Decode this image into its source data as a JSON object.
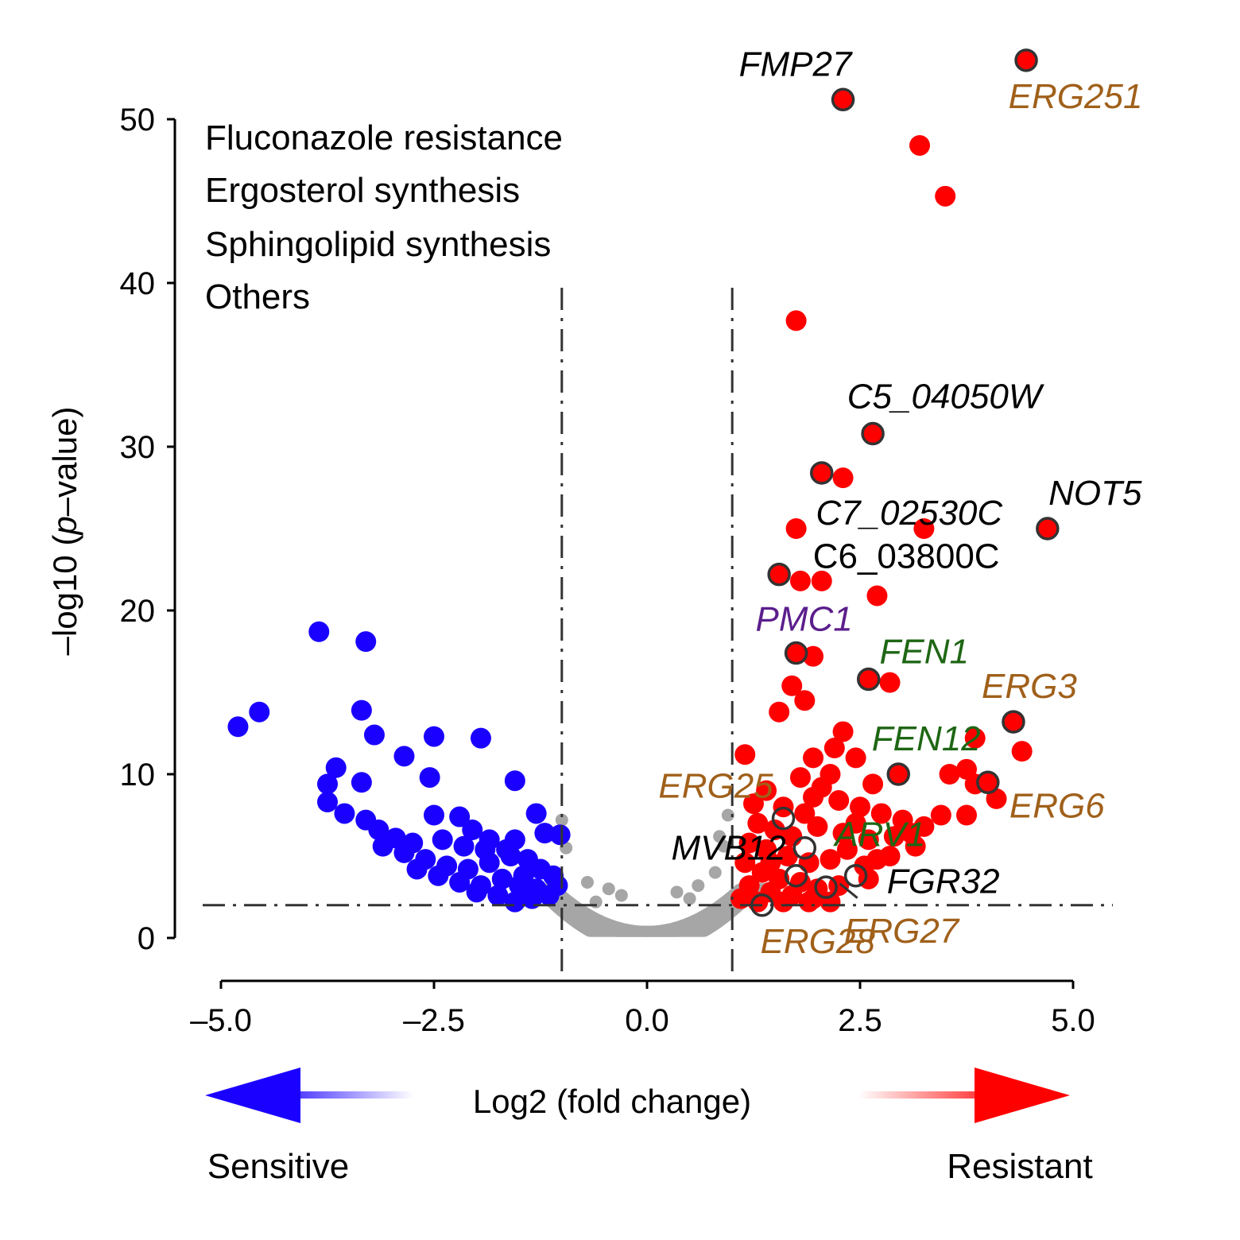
{
  "chart_data": {
    "type": "scatter",
    "title": "",
    "xlabel": "Log2 (fold change)",
    "ylabel_parts": [
      "–log10 (",
      "p",
      "–value)"
    ],
    "xlim": [
      -5.0,
      5.0
    ],
    "ylim": [
      0,
      50
    ],
    "x_ticks": [
      "–5.0",
      "–2.5",
      "0.0",
      "2.5",
      "5.0"
    ],
    "y_ticks": [
      "0",
      "10",
      "20",
      "30",
      "40",
      "50"
    ],
    "thresholds": {
      "log2fc": [
        -1,
        1
      ],
      "neg_log10_p": 2
    },
    "direction_labels": {
      "left": "Sensitive",
      "right": "Resistant"
    },
    "colors": {
      "sensitive": "#1a00ff",
      "resistant": "#ff0000",
      "not_significant": "#a6a6a6",
      "fluconazole_resistance": "#5b1e8c",
      "ergosterol_synthesis": "#a0601a",
      "sphingolipid_synthesis": "#1e6614",
      "others": "#000000"
    },
    "legend": [
      {
        "label": "Fluconazole resistance",
        "color": "#5b1e8c"
      },
      {
        "label": "Ergosterol synthesis",
        "color": "#a0601a"
      },
      {
        "label": "Sphingolipid synthesis",
        "color": "#1e6614"
      },
      {
        "label": "Others",
        "color": "#000000"
      }
    ],
    "highlighted_genes": [
      {
        "name": "FMP27",
        "x": 2.3,
        "y": 51.2,
        "category": "others",
        "italic": true
      },
      {
        "name": "ERG251",
        "x": 4.45,
        "y": 53.6,
        "category": "ergosterol_synthesis",
        "italic": true
      },
      {
        "name": "C5_04050W",
        "x": 2.65,
        "y": 30.8,
        "category": "others",
        "italic": true
      },
      {
        "name": "C7_02530C",
        "x": 2.05,
        "y": 28.4,
        "category": "others",
        "italic": true
      },
      {
        "name": "NOT5",
        "x": 4.7,
        "y": 25.0,
        "category": "others",
        "italic": true
      },
      {
        "name": "C6_03800C",
        "x": 1.55,
        "y": 22.2,
        "category": "others",
        "italic": false
      },
      {
        "name": "PMC1",
        "x": 1.75,
        "y": 17.4,
        "category": "fluconazole_resistance",
        "italic": true
      },
      {
        "name": "FEN1",
        "x": 2.6,
        "y": 15.8,
        "category": "sphingolipid_synthesis",
        "italic": true
      },
      {
        "name": "ERG3",
        "x": 4.3,
        "y": 13.2,
        "category": "ergosterol_synthesis",
        "italic": true
      },
      {
        "name": "FEN12",
        "x": 2.95,
        "y": 10.0,
        "category": "sphingolipid_synthesis",
        "italic": true
      },
      {
        "name": "ERG6",
        "x": 4.0,
        "y": 9.5,
        "category": "ergosterol_synthesis",
        "italic": true
      },
      {
        "name": "ERG25",
        "x": 1.6,
        "y": 7.3,
        "category": "ergosterol_synthesis",
        "italic": true
      },
      {
        "name": "ARV1",
        "x": 1.85,
        "y": 5.5,
        "category": "sphingolipid_synthesis",
        "italic": true
      },
      {
        "name": "MVB12",
        "x": 1.75,
        "y": 3.8,
        "category": "others",
        "italic": true
      },
      {
        "name": "FGR32",
        "x": 2.45,
        "y": 3.8,
        "category": "others",
        "italic": true
      },
      {
        "name": "ERG27",
        "x": 2.1,
        "y": 3.1,
        "category": "ergosterol_synthesis",
        "italic": true
      },
      {
        "name": "ERG28",
        "x": 1.35,
        "y": 2.0,
        "category": "ergosterol_synthesis",
        "italic": true
      }
    ],
    "resistant_points": [
      [
        3.2,
        48.4
      ],
      [
        3.5,
        45.3
      ],
      [
        1.75,
        37.7
      ],
      [
        2.3,
        28.1
      ],
      [
        1.75,
        25.0
      ],
      [
        3.25,
        25.0
      ],
      [
        1.8,
        21.8
      ],
      [
        2.05,
        21.8
      ],
      [
        2.7,
        20.9
      ],
      [
        1.95,
        17.2
      ],
      [
        1.7,
        15.4
      ],
      [
        2.85,
        15.6
      ],
      [
        1.85,
        14.5
      ],
      [
        1.55,
        13.8
      ],
      [
        2.3,
        12.6
      ],
      [
        3.85,
        12.2
      ],
      [
        4.4,
        11.4
      ],
      [
        1.15,
        11.2
      ],
      [
        2.2,
        11.6
      ],
      [
        1.95,
        11.0
      ],
      [
        2.45,
        11.0
      ],
      [
        3.55,
        10.0
      ],
      [
        3.75,
        10.3
      ],
      [
        3.85,
        9.4
      ],
      [
        1.8,
        9.8
      ],
      [
        2.15,
        10.0
      ],
      [
        2.65,
        9.4
      ],
      [
        4.1,
        8.5
      ],
      [
        3.45,
        7.5
      ],
      [
        3.75,
        7.5
      ],
      [
        1.95,
        8.6
      ],
      [
        2.25,
        8.4
      ],
      [
        2.5,
        8.0
      ],
      [
        2.75,
        7.6
      ],
      [
        3.0,
        7.2
      ],
      [
        3.25,
        6.8
      ],
      [
        1.3,
        7.0
      ],
      [
        1.5,
        6.6
      ],
      [
        1.7,
        6.2
      ],
      [
        2.0,
        6.8
      ],
      [
        2.3,
        6.4
      ],
      [
        2.6,
        6.0
      ],
      [
        2.9,
        6.2
      ],
      [
        3.1,
        6.4
      ],
      [
        1.2,
        5.8
      ],
      [
        1.4,
        5.4
      ],
      [
        1.65,
        5.0
      ],
      [
        1.9,
        4.6
      ],
      [
        2.15,
        4.8
      ],
      [
        2.35,
        5.4
      ],
      [
        2.55,
        4.4
      ],
      [
        2.85,
        5.0
      ],
      [
        3.15,
        5.6
      ],
      [
        1.15,
        4.6
      ],
      [
        1.35,
        4.0
      ],
      [
        1.55,
        3.6
      ],
      [
        1.8,
        3.4
      ],
      [
        2.0,
        3.0
      ],
      [
        2.25,
        3.2
      ],
      [
        2.6,
        3.6
      ],
      [
        1.2,
        3.2
      ],
      [
        1.45,
        2.8
      ],
      [
        1.7,
        2.6
      ],
      [
        1.95,
        2.4
      ],
      [
        2.15,
        2.2
      ],
      [
        1.1,
        2.4
      ],
      [
        1.3,
        2.2
      ],
      [
        1.6,
        2.2
      ],
      [
        1.9,
        2.2
      ],
      [
        1.25,
        8.2
      ],
      [
        1.4,
        9.0
      ],
      [
        1.6,
        8.0
      ],
      [
        1.85,
        7.6
      ],
      [
        2.45,
        7.0
      ],
      [
        2.05,
        9.2
      ],
      [
        1.45,
        4.6
      ],
      [
        2.7,
        4.8
      ]
    ],
    "sensitive_points": [
      [
        -3.85,
        18.7
      ],
      [
        -3.3,
        18.1
      ],
      [
        -4.8,
        12.9
      ],
      [
        -4.55,
        13.8
      ],
      [
        -3.35,
        13.9
      ],
      [
        -3.2,
        12.4
      ],
      [
        -2.5,
        12.3
      ],
      [
        -1.95,
        12.2
      ],
      [
        -2.85,
        11.1
      ],
      [
        -2.55,
        9.8
      ],
      [
        -1.55,
        9.6
      ],
      [
        -3.65,
        10.4
      ],
      [
        -3.75,
        9.4
      ],
      [
        -3.35,
        9.5
      ],
      [
        -3.75,
        8.3
      ],
      [
        -3.55,
        7.6
      ],
      [
        -3.3,
        7.2
      ],
      [
        -3.15,
        6.6
      ],
      [
        -2.95,
        6.1
      ],
      [
        -2.75,
        5.8
      ],
      [
        -2.5,
        7.5
      ],
      [
        -2.2,
        7.4
      ],
      [
        -2.4,
        6.0
      ],
      [
        -2.05,
        6.6
      ],
      [
        -1.85,
        6.0
      ],
      [
        -1.55,
        6.0
      ],
      [
        -1.3,
        7.6
      ],
      [
        -1.2,
        6.4
      ],
      [
        -1.02,
        6.3
      ],
      [
        -3.1,
        5.6
      ],
      [
        -2.85,
        5.2
      ],
      [
        -2.6,
        4.8
      ],
      [
        -2.35,
        4.4
      ],
      [
        -2.1,
        4.2
      ],
      [
        -1.85,
        4.6
      ],
      [
        -1.6,
        5.0
      ],
      [
        -1.4,
        4.8
      ],
      [
        -1.25,
        4.2
      ],
      [
        -1.1,
        3.8
      ],
      [
        -2.7,
        4.2
      ],
      [
        -2.45,
        3.8
      ],
      [
        -2.2,
        3.4
      ],
      [
        -1.95,
        3.2
      ],
      [
        -1.7,
        3.6
      ],
      [
        -1.5,
        3.2
      ],
      [
        -1.3,
        3.0
      ],
      [
        -1.05,
        3.2
      ],
      [
        -2.0,
        2.8
      ],
      [
        -1.75,
        2.6
      ],
      [
        -1.55,
        2.2
      ],
      [
        -1.35,
        2.4
      ],
      [
        -1.15,
        2.6
      ],
      [
        -1.65,
        5.4
      ],
      [
        -1.9,
        5.4
      ],
      [
        -2.15,
        5.6
      ],
      [
        -1.45,
        3.8
      ]
    ]
  }
}
